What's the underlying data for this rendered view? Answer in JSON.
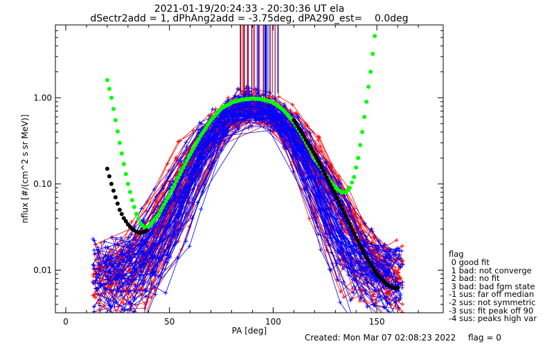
{
  "title_line1": "2021-01-19/20:24:33 - 20:30:36 UT ela",
  "title_line2": "dSectr2add = 1, dPhAng2add = -3.75deg, dPA290_est=    0.0deg",
  "footer": {
    "created": "Created: Mon Mar 07 02:08:23 2022",
    "flag_value": "flag = 0"
  },
  "legend": {
    "header": "flag",
    "items": [
      " 0 good fit",
      " 1 bad: not converge",
      " 2 bad: no fit",
      " 3 bad: bad fgm state",
      "-1 sus: far off median",
      "-2 sus: not symmetric",
      "-3 sus: fit peak off 90",
      "-4 sus: peaks high var"
    ]
  },
  "colors": {
    "red": "#ff0000",
    "blue": "#0000ff",
    "green": "#00ff00",
    "black": "#000000"
  },
  "chart_data": {
    "type": "line",
    "xlabel": "PA [deg]",
    "ylabel": "nflux [#/(cm^2 s sr MeV)]",
    "xscale": "linear",
    "yscale": "log",
    "xlim": [
      -5,
      182
    ],
    "ylim": [
      0.0032,
      7.0
    ],
    "xticks": [
      "0",
      "50",
      "100",
      "150"
    ],
    "yticks": [
      "0.01",
      "0.10",
      "1.00"
    ],
    "ytick_values": [
      0.01,
      0.1,
      1.0
    ],
    "grid": false,
    "series": [
      {
        "color": "green",
        "style": "thick-dots",
        "x": [
          20,
          22,
          24,
          26,
          28,
          30,
          32,
          34,
          36,
          38,
          40,
          45,
          50,
          55,
          60,
          65,
          70,
          75,
          80,
          85,
          90,
          95,
          100,
          105,
          110,
          115,
          120,
          125,
          130,
          133,
          135,
          137,
          139,
          141,
          143,
          145,
          147,
          149
        ],
        "y": [
          1.6,
          1.0,
          0.55,
          0.3,
          0.17,
          0.1,
          0.065,
          0.045,
          0.035,
          0.031,
          0.032,
          0.045,
          0.075,
          0.13,
          0.22,
          0.36,
          0.55,
          0.75,
          0.88,
          0.95,
          0.98,
          0.96,
          0.88,
          0.72,
          0.52,
          0.33,
          0.2,
          0.13,
          0.09,
          0.08,
          0.08,
          0.09,
          0.12,
          0.2,
          0.4,
          0.9,
          2.0,
          5.2
        ]
      },
      {
        "color": "black",
        "style": "thick-dots",
        "x": [
          20,
          22,
          24,
          26,
          28,
          30,
          32,
          34,
          36,
          38,
          40,
          110,
          115,
          120,
          125,
          130,
          135,
          140,
          145,
          150,
          155,
          158,
          160
        ],
        "y": [
          0.15,
          0.1,
          0.07,
          0.05,
          0.04,
          0.034,
          0.03,
          0.028,
          0.027,
          0.028,
          0.03,
          0.55,
          0.35,
          0.22,
          0.13,
          0.075,
          0.042,
          0.024,
          0.014,
          0.009,
          0.0068,
          0.0062,
          0.0062
        ]
      }
    ],
    "bundles": [
      {
        "name": "",
        "color": "red",
        "count": 58
      },
      {
        "name": "",
        "color": "blue",
        "count": 62
      }
    ],
    "annotations": [
      "vertical lines near PA 83-103 deg above the 1.0 level (red/blue/navy)"
    ]
  }
}
